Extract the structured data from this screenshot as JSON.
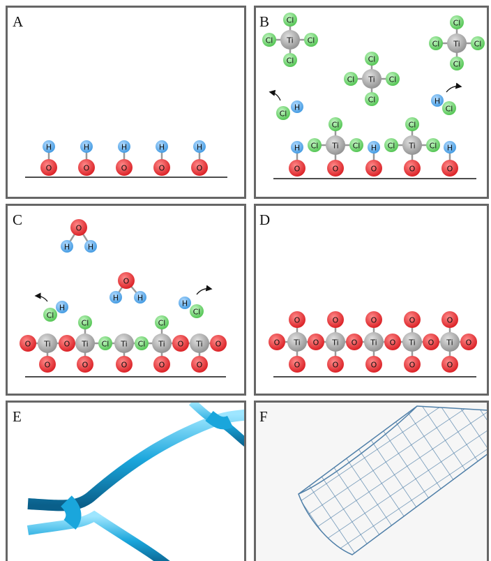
{
  "panels": [
    {
      "label": "A",
      "atoms": [
        "H",
        "H",
        "H",
        "H",
        "H",
        "O",
        "O",
        "O",
        "O",
        "O"
      ]
    },
    {
      "label": "B",
      "atoms": [
        "Ti",
        "Cl",
        "Cl",
        "Cl",
        "Cl",
        "Ti",
        "Cl",
        "Cl",
        "Cl",
        "Cl",
        "Ti",
        "Cl",
        "Cl",
        "Cl",
        "Cl",
        "Cl",
        "H",
        "H",
        "Cl",
        "O",
        "H",
        "O",
        "Ti",
        "Cl",
        "Cl",
        "Cl",
        "O",
        "H",
        "O",
        "Ti",
        "Cl",
        "Cl",
        "Cl",
        "O",
        "H"
      ]
    },
    {
      "label": "C",
      "atoms": [
        "O",
        "H",
        "H",
        "O",
        "H",
        "H",
        "Cl",
        "H",
        "H",
        "Cl",
        "O",
        "O",
        "O",
        "O",
        "O",
        "O",
        "Ti",
        "O",
        "Ti",
        "Cl",
        "Ti",
        "Cl",
        "Ti",
        "O",
        "Ti",
        "O",
        "Cl",
        "Cl"
      ]
    },
    {
      "label": "D",
      "atoms": [
        "O",
        "O",
        "O",
        "O",
        "O",
        "O",
        "Ti",
        "O",
        "Ti",
        "O",
        "Ti",
        "O",
        "Ti",
        "O",
        "Ti",
        "O",
        "O",
        "O",
        "O",
        "O",
        "O"
      ]
    },
    {
      "label": "E"
    },
    {
      "label": "F"
    }
  ]
}
